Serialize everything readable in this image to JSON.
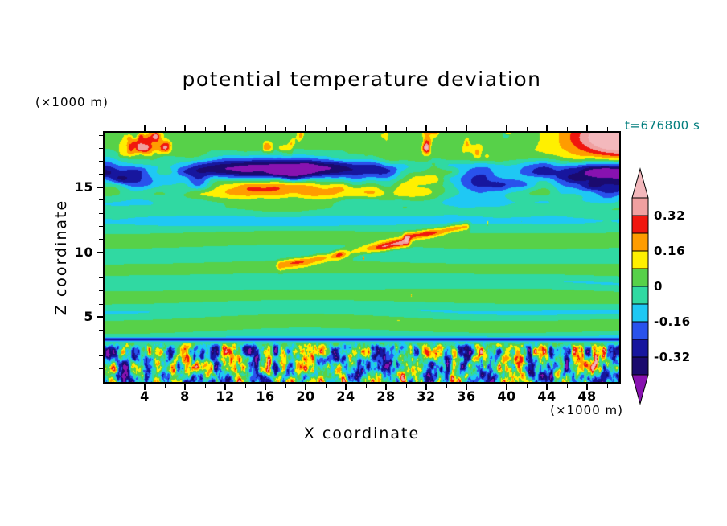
{
  "chart_data": {
    "type": "heatmap",
    "title": "potential temperature deviation",
    "xlabel": "X coordinate",
    "ylabel": "Z coordinate",
    "x_unit_label": "(×1000 m)",
    "y_unit_label": "(×1000 m)",
    "time_label": "t=676800 s",
    "xlim": [
      0,
      51.2
    ],
    "ylim": [
      0,
      19.2
    ],
    "x_major_ticks": [
      4,
      8,
      12,
      16,
      20,
      24,
      28,
      32,
      36,
      40,
      44,
      48
    ],
    "x_minor_step": 2,
    "y_major_ticks": [
      5,
      10,
      15
    ],
    "y_minor_step": 1,
    "colorbar": {
      "levels": [
        0.4,
        0.32,
        0.24,
        0.16,
        0.08,
        0,
        -0.08,
        -0.16,
        -0.24,
        -0.32,
        -0.4
      ],
      "colors_high_to_low": [
        "#f3b8bc",
        "#f0a0a0",
        "#f1170e",
        "#ff9c00",
        "#fff000",
        "#57d149",
        "#30d9a2",
        "#1fc8f4",
        "#2952ec",
        "#17169e",
        "#1b0a6e",
        "#8812b0"
      ],
      "tick_labels": [
        "0.32",
        "0.16",
        "0",
        "-0.16",
        "-0.32"
      ],
      "tick_level_indices": [
        1,
        3,
        5,
        7,
        9
      ]
    },
    "field_description": {
      "background": "mostly near-zero deviation shown as alternating green and teal horizontal stripes through the mid levels (z ~ 3.5-13.5 km)",
      "lower_layer": "strongly turbulent convective boundary layer below z ~ 3 km with saturated positive (red/yellow/pink) and negative (cyan/blue/navy/purple) plumes, capped by a thin dark-blue line",
      "mid_layer": "scattered small strong-positive (pink/red) speckles and a few tilted warm streaks between z ~ 5-12 km; weak cyan band near z ~ 13 km",
      "upper_layer": "breaking-wave layer near z ~ 14-17 km with large pink warm cores ringed by red/orange/yellow adjacent to dark navy and purple cold bands",
      "top_layer": "green background above z ~ 17 km with warm yellow/orange/red plume fingers and a strong warm blob at the top right corner"
    },
    "field_synthesis_params": {
      "stripe_amp": 0.045,
      "stripe_freq": 2.9,
      "wave_center_z": 15.7,
      "wave_sigma": 1.15,
      "wave_amp": 0.45,
      "darkband_z": 16.35,
      "darkband_amp": 0.32,
      "pinkband_z": 14.65,
      "pinkband_amp": 0.26,
      "tropo_z": 13.1,
      "tropo_amp": 0.1,
      "top_plume_amp": 0.5,
      "bl_top_z": 3.3,
      "bl_amp": 0.65,
      "cap_amp": 0.27,
      "speck_threshold": 0.8,
      "speck_gain": 9,
      "streaks": [
        {
          "x0": 17.5,
          "z0": 9.0,
          "x1": 30.0,
          "z1": 10.8,
          "w": 0.35,
          "amp": 0.38
        },
        {
          "x0": 30.0,
          "z0": 11.2,
          "x1": 36.0,
          "z1": 12.0,
          "w": 0.3,
          "amp": 0.3
        }
      ]
    }
  }
}
